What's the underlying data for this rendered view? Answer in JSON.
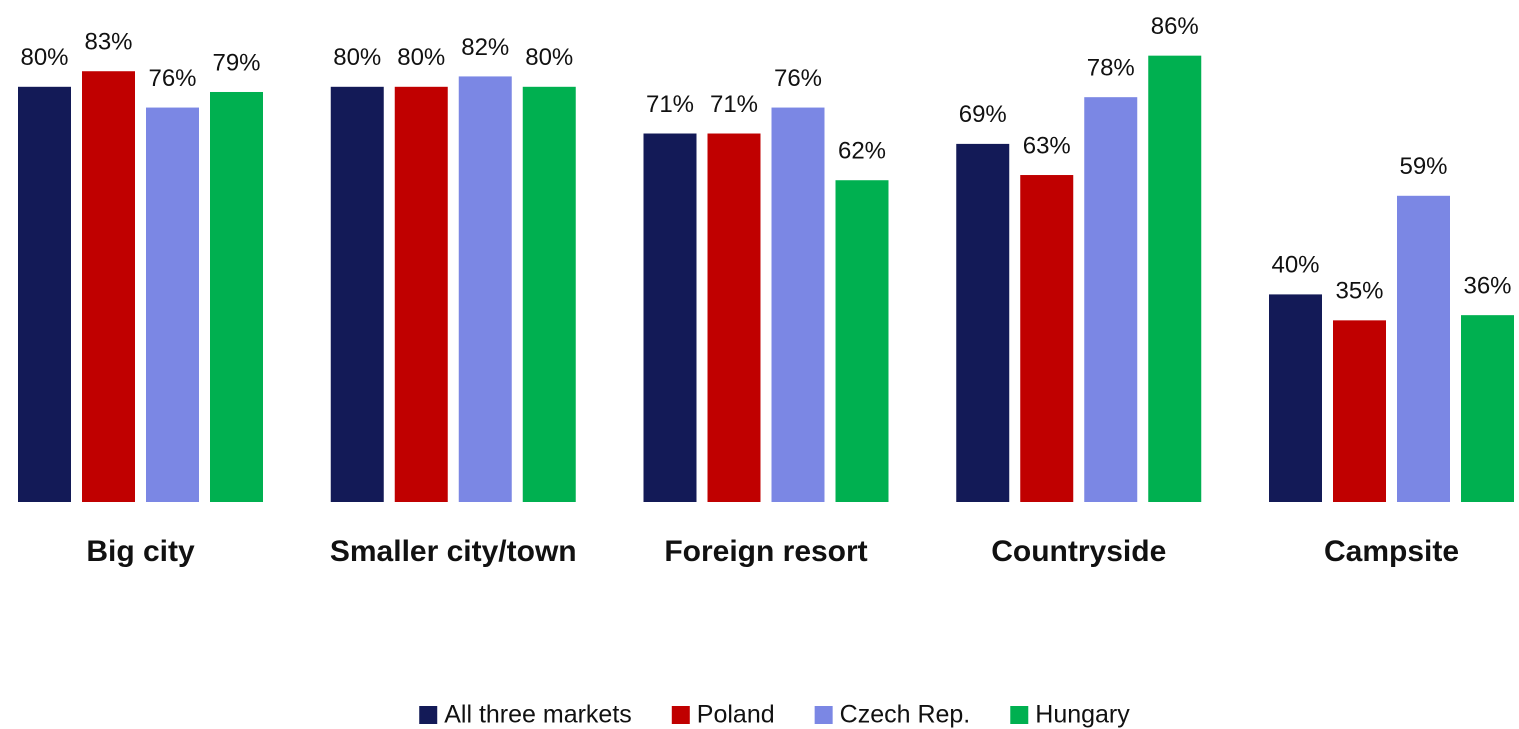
{
  "chart_data": {
    "type": "bar",
    "categories": [
      "Big city",
      "Smaller city/town",
      "Foreign resort",
      "Countryside",
      "Campsite"
    ],
    "series": [
      {
        "name": "All three markets",
        "color": "#131a57",
        "values": [
          80,
          80,
          71,
          69,
          40
        ],
        "value_labels": [
          "80%",
          "80%",
          "71%",
          "69%",
          "40%"
        ]
      },
      {
        "name": "Poland",
        "color": "#c00000",
        "values": [
          83,
          80,
          71,
          63,
          35
        ],
        "value_labels": [
          "83%",
          "80%",
          "71%",
          "63%",
          "35%"
        ]
      },
      {
        "name": "Czech Rep.",
        "color": "#7b87e4",
        "values": [
          76,
          82,
          76,
          78,
          59
        ],
        "value_labels": [
          "76%",
          "82%",
          "76%",
          "78%",
          "59%"
        ]
      },
      {
        "name": "Hungary",
        "color": "#00b050",
        "values": [
          79,
          80,
          62,
          86,
          36
        ],
        "value_labels": [
          "79%",
          "80%",
          "62%",
          "86%",
          "36%"
        ]
      }
    ],
    "ylim": [
      0,
      100
    ],
    "legend": "bottom"
  }
}
